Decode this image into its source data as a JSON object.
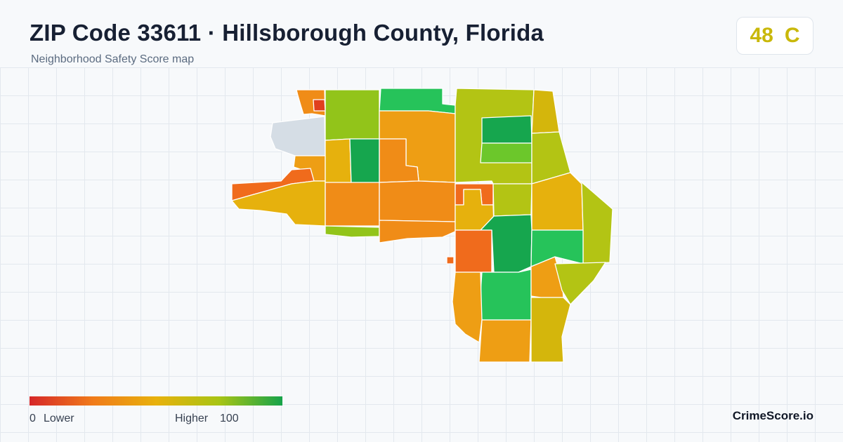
{
  "header": {
    "title": "ZIP Code 33611 · Hillsborough County, Florida",
    "subtitle": "Neighborhood Safety Score map"
  },
  "score": {
    "value": "48",
    "grade": "C",
    "color": "#c9b80a"
  },
  "legend": {
    "min_value": "0",
    "min_label": "Lower",
    "max_label": "Higher",
    "max_value": "100",
    "gradient_colors": [
      "#d62728",
      "#f07b1a",
      "#e8b10c",
      "#a8c414",
      "#16a34a"
    ]
  },
  "brand": "CrimeScore.io",
  "map": {
    "no_data_color": "#d5dde5",
    "colors": {
      "red_orange": "#f06b1c",
      "orange": "#f08c17",
      "light_orange": "#ee9e14",
      "amber": "#e6b10d",
      "yellow": "#d4b60c",
      "olive": "#b3c414",
      "lime": "#92c41a",
      "green_light": "#6cc72b",
      "green": "#26c35a",
      "green_dark": "#16a64e",
      "red": "#e0401e"
    }
  }
}
